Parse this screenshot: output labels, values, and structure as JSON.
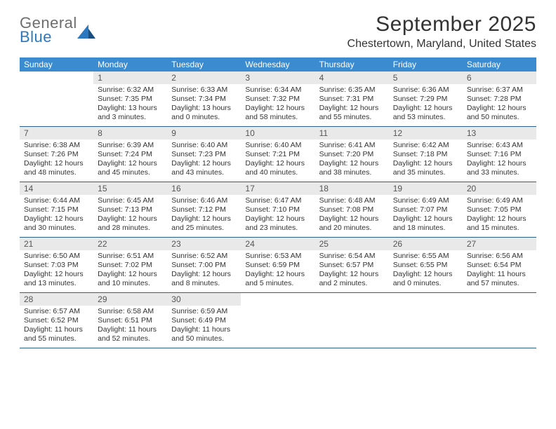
{
  "logo": {
    "line1": "General",
    "line2": "Blue"
  },
  "title": "September 2025",
  "location": "Chestertown, Maryland, United States",
  "colors": {
    "header_bg": "#3b8bd0",
    "header_text": "#ffffff",
    "daynum_bg": "#e9e9e9",
    "daynum_text": "#555555",
    "body_text": "#333333",
    "rule": "#2a5f8f",
    "logo_gray": "#6e6e6e",
    "logo_blue": "#2c78c0",
    "background": "#ffffff"
  },
  "typography": {
    "title_fontsize": 30,
    "location_fontsize": 16,
    "dayheader_fontsize": 12,
    "daynum_fontsize": 12,
    "body_fontsize": 10.5,
    "font_family": "Arial"
  },
  "day_headers": [
    "Sunday",
    "Monday",
    "Tuesday",
    "Wednesday",
    "Thursday",
    "Friday",
    "Saturday"
  ],
  "weeks": [
    [
      {
        "empty": true
      },
      {
        "day": "1",
        "sunrise": "Sunrise: 6:32 AM",
        "sunset": "Sunset: 7:35 PM",
        "daylight": "Daylight: 13 hours and 3 minutes."
      },
      {
        "day": "2",
        "sunrise": "Sunrise: 6:33 AM",
        "sunset": "Sunset: 7:34 PM",
        "daylight": "Daylight: 13 hours and 0 minutes."
      },
      {
        "day": "3",
        "sunrise": "Sunrise: 6:34 AM",
        "sunset": "Sunset: 7:32 PM",
        "daylight": "Daylight: 12 hours and 58 minutes."
      },
      {
        "day": "4",
        "sunrise": "Sunrise: 6:35 AM",
        "sunset": "Sunset: 7:31 PM",
        "daylight": "Daylight: 12 hours and 55 minutes."
      },
      {
        "day": "5",
        "sunrise": "Sunrise: 6:36 AM",
        "sunset": "Sunset: 7:29 PM",
        "daylight": "Daylight: 12 hours and 53 minutes."
      },
      {
        "day": "6",
        "sunrise": "Sunrise: 6:37 AM",
        "sunset": "Sunset: 7:28 PM",
        "daylight": "Daylight: 12 hours and 50 minutes."
      }
    ],
    [
      {
        "day": "7",
        "sunrise": "Sunrise: 6:38 AM",
        "sunset": "Sunset: 7:26 PM",
        "daylight": "Daylight: 12 hours and 48 minutes."
      },
      {
        "day": "8",
        "sunrise": "Sunrise: 6:39 AM",
        "sunset": "Sunset: 7:24 PM",
        "daylight": "Daylight: 12 hours and 45 minutes."
      },
      {
        "day": "9",
        "sunrise": "Sunrise: 6:40 AM",
        "sunset": "Sunset: 7:23 PM",
        "daylight": "Daylight: 12 hours and 43 minutes."
      },
      {
        "day": "10",
        "sunrise": "Sunrise: 6:40 AM",
        "sunset": "Sunset: 7:21 PM",
        "daylight": "Daylight: 12 hours and 40 minutes."
      },
      {
        "day": "11",
        "sunrise": "Sunrise: 6:41 AM",
        "sunset": "Sunset: 7:20 PM",
        "daylight": "Daylight: 12 hours and 38 minutes."
      },
      {
        "day": "12",
        "sunrise": "Sunrise: 6:42 AM",
        "sunset": "Sunset: 7:18 PM",
        "daylight": "Daylight: 12 hours and 35 minutes."
      },
      {
        "day": "13",
        "sunrise": "Sunrise: 6:43 AM",
        "sunset": "Sunset: 7:16 PM",
        "daylight": "Daylight: 12 hours and 33 minutes."
      }
    ],
    [
      {
        "day": "14",
        "sunrise": "Sunrise: 6:44 AM",
        "sunset": "Sunset: 7:15 PM",
        "daylight": "Daylight: 12 hours and 30 minutes."
      },
      {
        "day": "15",
        "sunrise": "Sunrise: 6:45 AM",
        "sunset": "Sunset: 7:13 PM",
        "daylight": "Daylight: 12 hours and 28 minutes."
      },
      {
        "day": "16",
        "sunrise": "Sunrise: 6:46 AM",
        "sunset": "Sunset: 7:12 PM",
        "daylight": "Daylight: 12 hours and 25 minutes."
      },
      {
        "day": "17",
        "sunrise": "Sunrise: 6:47 AM",
        "sunset": "Sunset: 7:10 PM",
        "daylight": "Daylight: 12 hours and 23 minutes."
      },
      {
        "day": "18",
        "sunrise": "Sunrise: 6:48 AM",
        "sunset": "Sunset: 7:08 PM",
        "daylight": "Daylight: 12 hours and 20 minutes."
      },
      {
        "day": "19",
        "sunrise": "Sunrise: 6:49 AM",
        "sunset": "Sunset: 7:07 PM",
        "daylight": "Daylight: 12 hours and 18 minutes."
      },
      {
        "day": "20",
        "sunrise": "Sunrise: 6:49 AM",
        "sunset": "Sunset: 7:05 PM",
        "daylight": "Daylight: 12 hours and 15 minutes."
      }
    ],
    [
      {
        "day": "21",
        "sunrise": "Sunrise: 6:50 AM",
        "sunset": "Sunset: 7:03 PM",
        "daylight": "Daylight: 12 hours and 13 minutes."
      },
      {
        "day": "22",
        "sunrise": "Sunrise: 6:51 AM",
        "sunset": "Sunset: 7:02 PM",
        "daylight": "Daylight: 12 hours and 10 minutes."
      },
      {
        "day": "23",
        "sunrise": "Sunrise: 6:52 AM",
        "sunset": "Sunset: 7:00 PM",
        "daylight": "Daylight: 12 hours and 8 minutes."
      },
      {
        "day": "24",
        "sunrise": "Sunrise: 6:53 AM",
        "sunset": "Sunset: 6:59 PM",
        "daylight": "Daylight: 12 hours and 5 minutes."
      },
      {
        "day": "25",
        "sunrise": "Sunrise: 6:54 AM",
        "sunset": "Sunset: 6:57 PM",
        "daylight": "Daylight: 12 hours and 2 minutes."
      },
      {
        "day": "26",
        "sunrise": "Sunrise: 6:55 AM",
        "sunset": "Sunset: 6:55 PM",
        "daylight": "Daylight: 12 hours and 0 minutes."
      },
      {
        "day": "27",
        "sunrise": "Sunrise: 6:56 AM",
        "sunset": "Sunset: 6:54 PM",
        "daylight": "Daylight: 11 hours and 57 minutes."
      }
    ],
    [
      {
        "day": "28",
        "sunrise": "Sunrise: 6:57 AM",
        "sunset": "Sunset: 6:52 PM",
        "daylight": "Daylight: 11 hours and 55 minutes."
      },
      {
        "day": "29",
        "sunrise": "Sunrise: 6:58 AM",
        "sunset": "Sunset: 6:51 PM",
        "daylight": "Daylight: 11 hours and 52 minutes."
      },
      {
        "day": "30",
        "sunrise": "Sunrise: 6:59 AM",
        "sunset": "Sunset: 6:49 PM",
        "daylight": "Daylight: 11 hours and 50 minutes."
      },
      {
        "empty": true
      },
      {
        "empty": true
      },
      {
        "empty": true
      },
      {
        "empty": true
      }
    ]
  ]
}
